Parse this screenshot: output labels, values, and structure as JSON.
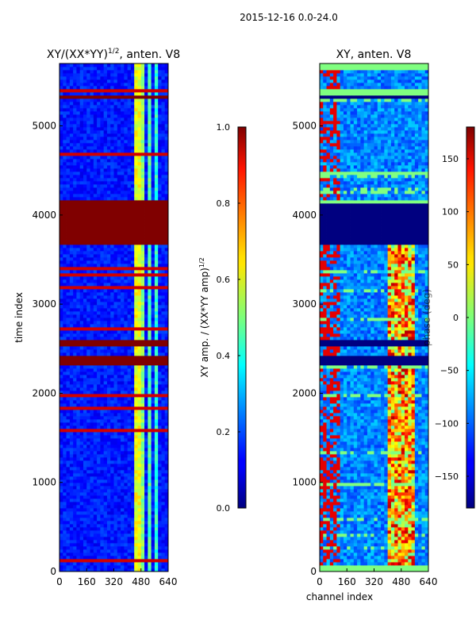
{
  "figure": {
    "suptitle": "2015-12-16 0.0-24.0",
    "shared_ylabel": "time index",
    "shared_xlabel": "channel index"
  },
  "chart_data": [
    {
      "type": "heatmap",
      "title_main": "XY/(XX*YY)",
      "title_sup": "1/2",
      "title_tail": ", anten. V8",
      "xlabel": "",
      "ylabel": "time index",
      "xlim": [
        0,
        640
      ],
      "ylim": [
        0,
        5700
      ],
      "xticks": [
        0,
        160,
        320,
        480,
        640
      ],
      "yticks": [
        0,
        1000,
        2000,
        3000,
        4000,
        5000
      ],
      "colorbar": {
        "label_main": "XY amp. / (XX*YY amp)",
        "label_sup": "1/2",
        "range": [
          0.0,
          1.0
        ],
        "ticks": [
          "0.0",
          "0.2",
          "0.4",
          "0.6",
          "0.8",
          "1.0"
        ],
        "tick_values": [
          0.0,
          0.2,
          0.4,
          0.6,
          0.8,
          1.0
        ]
      },
      "saturated_time_bands": [
        [
          5300,
          5360
        ],
        [
          4130,
          4170
        ],
        [
          3680,
          4130
        ],
        [
          2545,
          2590
        ],
        [
          2330,
          2410
        ]
      ],
      "bright_channel_bands": [
        [
          440,
          470,
          0.55
        ],
        [
          480,
          500,
          0.45
        ],
        [
          520,
          540,
          0.4
        ],
        [
          560,
          585,
          0.35
        ]
      ]
    },
    {
      "type": "heatmap",
      "title_main": "XY, anten. V8",
      "xlabel": "channel index",
      "ylabel": "",
      "xlim": [
        0,
        640
      ],
      "ylim": [
        0,
        5700
      ],
      "xticks": [
        0,
        160,
        320,
        480,
        640
      ],
      "yticks": [
        0,
        1000,
        2000,
        3000,
        4000,
        5000
      ],
      "colorbar": {
        "label_main": "phase (deg)",
        "range": [
          -180,
          180
        ],
        "ticks": [
          "−150",
          "−100",
          "−50",
          "0",
          "50",
          "100",
          "150"
        ],
        "tick_values": [
          -150,
          -100,
          -50,
          0,
          50,
          100,
          150
        ]
      },
      "flat_time_bands": [
        [
          5310,
          5360,
          -180
        ],
        [
          3680,
          4130,
          -180
        ],
        [
          2545,
          2590,
          -180
        ],
        [
          2330,
          2410,
          -180
        ]
      ],
      "green_time_bands": [
        [
          5630,
          5700,
          0
        ],
        [
          5360,
          5400,
          0
        ],
        [
          4460,
          4500,
          0
        ],
        [
          4130,
          4170,
          0
        ],
        [
          0,
          80,
          0
        ]
      ]
    }
  ]
}
